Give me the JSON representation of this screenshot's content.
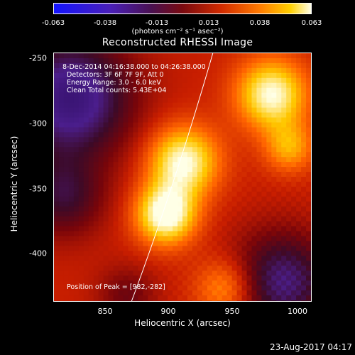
{
  "colorbar": {
    "ticks": [
      "-0.063",
      "-0.038",
      "-0.013",
      "0.013",
      "0.038",
      "0.063"
    ],
    "units": "(photons cm⁻² s⁻¹ asec⁻²)"
  },
  "title": "Reconstructed RHESSI Image",
  "annotations": {
    "time_range": "8-Dec-2014 04:16:38.000 to 04:26:38.000",
    "detectors": "Detectors: 3F 6F 7F 9F, Att 0",
    "energy": "Energy Range: 3.0 - 6.0 keV",
    "method": "Clean     Total counts: 5.43E+04",
    "peak": "Position of Peak = [982,-282]"
  },
  "axes": {
    "xlabel": "Heliocentric X (arcsec)",
    "ylabel": "Heliocentric Y (arcsec)",
    "xticks": [
      "850",
      "900",
      "950",
      "1000"
    ],
    "yticks": [
      "-250",
      "-300",
      "-350",
      "-400"
    ],
    "xlim": [
      812,
      1000
    ],
    "ylim": [
      -437,
      -245
    ]
  },
  "footer": "23-Aug-2017 04:17"
}
